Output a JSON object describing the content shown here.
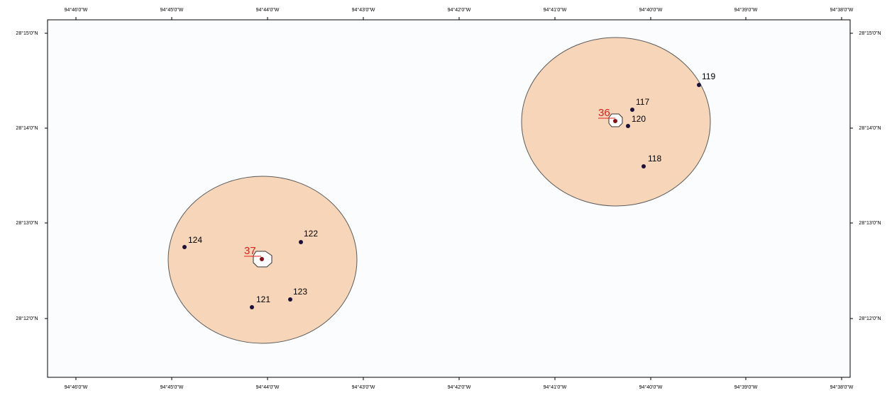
{
  "map": {
    "colors": {
      "page_background": "#ffffff",
      "frame_background": "#fbfcfe",
      "frame_stroke": "#000000",
      "buffer_fill": "#f7d5b8",
      "buffer_stroke": "#5b5b5b",
      "well_dot": "#1a103a",
      "platform_label": "#e0201b",
      "platform_marker_fill": "#ffffff",
      "platform_marker_center": "#8a0f16",
      "platform_marker_stroke": "#333333"
    },
    "axes": {
      "longitude_labels": [
        "94°46'0\"W",
        "94°45'0\"W",
        "94°44'0\"W",
        "94°43'0\"W",
        "94°42'0\"W",
        "94°41'0\"W",
        "94°40'0\"W",
        "94°39'0\"W",
        "94°38'0\"W"
      ],
      "latitude_labels": [
        "28°15'0\"N",
        "28°14'0\"N",
        "28°13'0\"N",
        "28°12'0\"N"
      ]
    },
    "buffers": [
      {
        "name": "buffer-36",
        "label": "36",
        "wells": [
          {
            "label": "117"
          },
          {
            "label": "120"
          },
          {
            "label": "119"
          },
          {
            "label": "118"
          }
        ]
      },
      {
        "name": "buffer-37",
        "label": "37",
        "wells": [
          {
            "label": "124"
          },
          {
            "label": "122"
          },
          {
            "label": "121"
          },
          {
            "label": "123"
          }
        ]
      }
    ]
  }
}
